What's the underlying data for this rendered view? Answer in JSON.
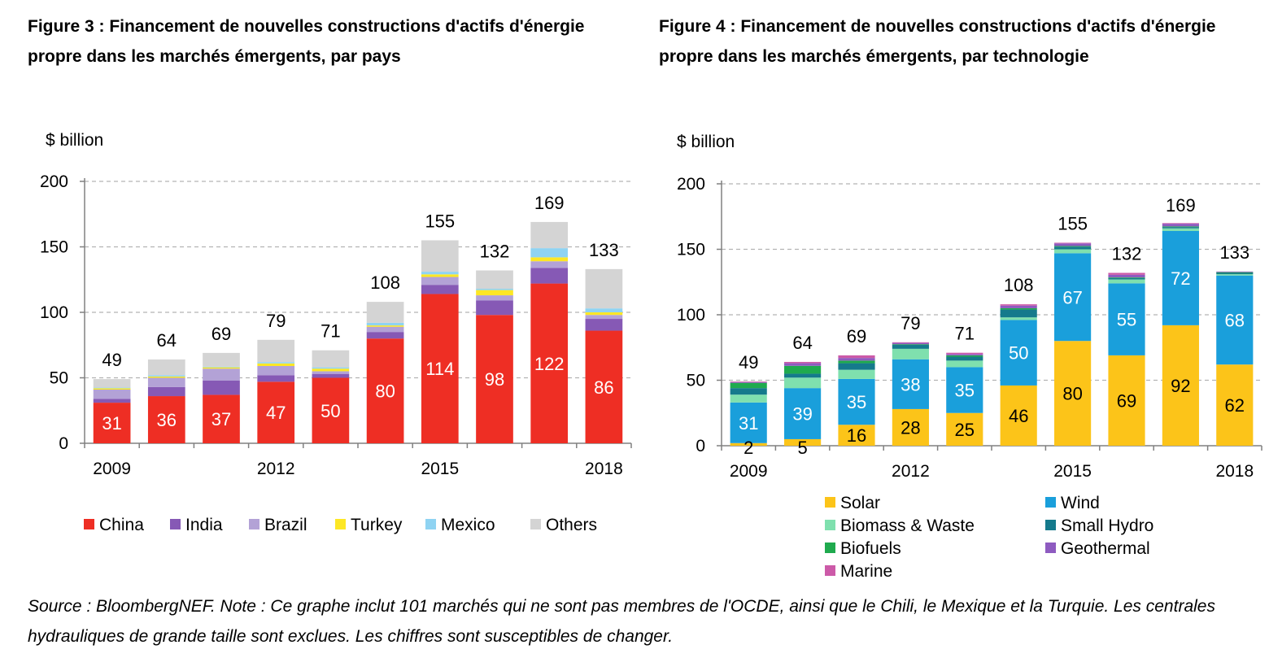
{
  "figure3": {
    "title": "Figure 3 : Financement de nouvelles constructions d'actifs d'énergie propre dans les marchés émergents, par pays",
    "unit": "$ billion"
  },
  "figure4": {
    "title": "Figure 4 : Financement de nouvelles constructions d'actifs d'énergie propre dans les marchés émergents, par technologie",
    "unit": "$ billion"
  },
  "source": "Source : BloombergNEF. Note : Ce graphe inclut 101 marchés qui ne sont pas membres de l'OCDE, ainsi que le Chili, le Mexique et la Turquie. Les centrales hydrauliques de grande taille sont exclues. Les chiffres sont susceptibles de changer.",
  "chart_data": [
    {
      "type": "bar",
      "stacked": true,
      "title": "Figure 3 : Financement de nouvelles constructions d'actifs d'énergie propre dans les marchés émergents, par pays",
      "ylabel": "$ billion",
      "ylim": [
        0,
        200
      ],
      "yticks": [
        0,
        50,
        100,
        150,
        200
      ],
      "grid": true,
      "legend": "bottom",
      "categories": [
        "2009",
        "2010",
        "2011",
        "2012",
        "2013",
        "2014",
        "2015",
        "2016",
        "2017",
        "2018"
      ],
      "x_tick_labels": [
        "2009",
        "",
        "",
        "2012",
        "",
        "",
        "2015",
        "",
        "",
        "2018"
      ],
      "totals": [
        49,
        64,
        69,
        79,
        71,
        108,
        155,
        132,
        169,
        133
      ],
      "labeled_series": "China",
      "series": [
        {
          "name": "China",
          "color": "#ee2e24",
          "values": [
            31,
            36,
            37,
            47,
            50,
            80,
            114,
            98,
            122,
            86
          ]
        },
        {
          "name": "India",
          "color": "#8659b5",
          "values": [
            3,
            7,
            11,
            5,
            3,
            5,
            7,
            11,
            12,
            9
          ]
        },
        {
          "name": "Brazil",
          "color": "#b3a2d6",
          "values": [
            7,
            7,
            9,
            7,
            2,
            4,
            6,
            4,
            5,
            3
          ]
        },
        {
          "name": "Turkey",
          "color": "#fde725",
          "values": [
            1,
            1,
            1,
            2,
            2,
            1,
            2,
            4,
            3,
            2
          ]
        },
        {
          "name": "Mexico",
          "color": "#8fd3f2",
          "values": [
            0.5,
            1,
            0.5,
            1,
            1,
            2,
            2,
            1,
            7,
            3
          ]
        },
        {
          "name": "Others",
          "color": "#d4d4d4",
          "values": [
            6.5,
            12,
            10.5,
            17,
            13,
            16,
            24,
            14,
            20,
            30
          ]
        }
      ]
    },
    {
      "type": "bar",
      "stacked": true,
      "title": "Figure 4 : Financement de nouvelles constructions d'actifs d'énergie propre dans les marchés émergents, par technologie",
      "ylabel": "$ billion",
      "ylim": [
        0,
        200
      ],
      "yticks": [
        0,
        50,
        100,
        150,
        200
      ],
      "grid": true,
      "legend": "bottom",
      "categories": [
        "2009",
        "2010",
        "2011",
        "2012",
        "2013",
        "2014",
        "2015",
        "2016",
        "2017",
        "2018"
      ],
      "x_tick_labels": [
        "2009",
        "",
        "",
        "2012",
        "",
        "",
        "2015",
        "",
        "",
        "2018"
      ],
      "totals": [
        49,
        64,
        69,
        79,
        71,
        108,
        155,
        132,
        169,
        133
      ],
      "labeled_series": [
        "Solar",
        "Wind"
      ],
      "series": [
        {
          "name": "Solar",
          "color": "#fcc419",
          "values": [
            2,
            5,
            16,
            28,
            25,
            46,
            80,
            69,
            92,
            62
          ]
        },
        {
          "name": "Wind",
          "color": "#1a9fdb",
          "values": [
            31,
            39,
            35,
            38,
            35,
            50,
            67,
            55,
            72,
            68
          ]
        },
        {
          "name": "Biomass & Waste",
          "color": "#7fe0ae",
          "values": [
            6,
            8,
            7,
            8,
            5,
            2,
            3,
            3,
            2,
            1
          ]
        },
        {
          "name": "Small Hydro",
          "color": "#157a8c",
          "values": [
            5,
            3,
            5,
            3,
            3,
            6,
            2,
            1,
            1,
            1
          ]
        },
        {
          "name": "Biofuels",
          "color": "#1faa4e",
          "values": [
            4,
            6,
            2,
            0.5,
            1,
            1,
            0.5,
            0.5,
            0.5,
            0.5
          ]
        },
        {
          "name": "Geothermal",
          "color": "#8e5bc0",
          "values": [
            0.5,
            2,
            2,
            1,
            1,
            2,
            2,
            2,
            2,
            0.5
          ]
        },
        {
          "name": "Marine",
          "color": "#cc5aa8",
          "values": [
            0.5,
            1,
            2,
            0.5,
            1,
            1,
            0.5,
            1.5,
            0.5,
            0
          ]
        }
      ]
    }
  ]
}
